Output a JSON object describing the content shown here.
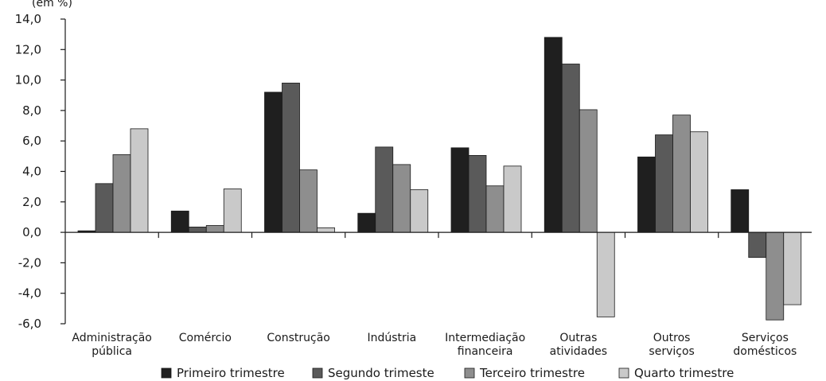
{
  "chart_data": {
    "type": "bar",
    "y_unit_label": "(em %)",
    "categories": [
      [
        "Administração",
        "pública"
      ],
      [
        "Comércio"
      ],
      [
        "Construção"
      ],
      [
        "Indústria"
      ],
      [
        "Intermediação",
        "financeira"
      ],
      [
        "Outras",
        "atividades"
      ],
      [
        "Outros",
        "serviços"
      ],
      [
        "Serviços",
        "domésticos"
      ]
    ],
    "series": [
      {
        "name": "Primeiro trimestre",
        "color": "#1f1f1f",
        "values": [
          0.1,
          1.4,
          9.2,
          1.25,
          5.55,
          12.8,
          4.95,
          2.8
        ]
      },
      {
        "name": "Segundo trimeste",
        "color": "#5a5a5a",
        "values": [
          3.2,
          0.35,
          9.8,
          5.6,
          5.05,
          11.05,
          6.4,
          -1.65
        ]
      },
      {
        "name": "Terceiro trimestre",
        "color": "#8e8e8e",
        "values": [
          5.1,
          0.45,
          4.1,
          4.45,
          3.05,
          8.05,
          7.7,
          -5.75
        ]
      },
      {
        "name": "Quarto trimestre",
        "color": "#c9c9c9",
        "values": [
          6.8,
          2.85,
          0.3,
          2.8,
          4.35,
          -5.55,
          6.6,
          -4.75
        ]
      }
    ],
    "ylim": [
      -6,
      14
    ],
    "yticks": [
      "14,0",
      "12,0",
      "10,0",
      "8,0",
      "6,0",
      "4,0",
      "2,0",
      "0,0",
      "-2,0",
      "-4,0",
      "-6,0"
    ],
    "ytick_values": [
      14,
      12,
      10,
      8,
      6,
      4,
      2,
      0,
      -2,
      -4,
      -6
    ],
    "grid": false,
    "legend_position": "bottom"
  }
}
